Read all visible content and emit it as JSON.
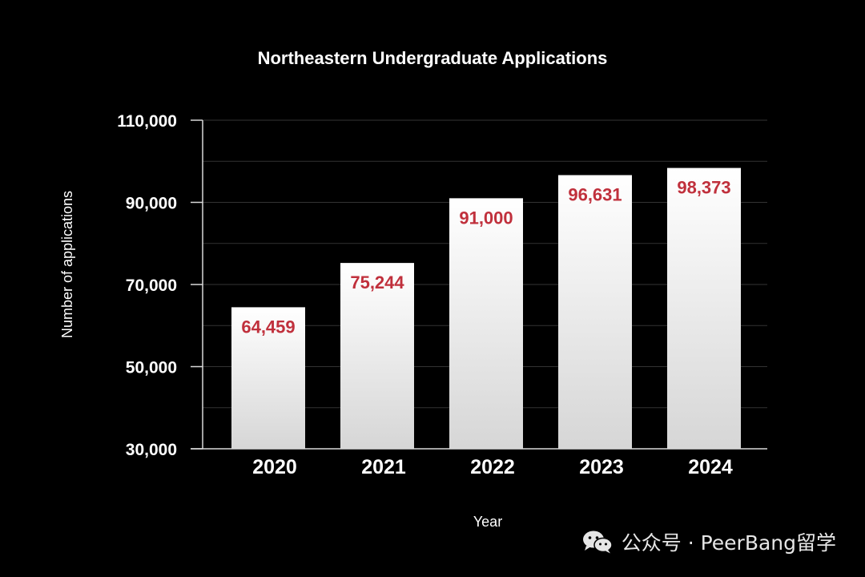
{
  "chart_data": {
    "type": "bar",
    "title": "Northeastern Undergraduate Applications",
    "xlabel": "Year",
    "ylabel": "Number of applications",
    "categories": [
      "2020",
      "2021",
      "2022",
      "2023",
      "2024"
    ],
    "values": [
      64459,
      75244,
      91000,
      96631,
      98373
    ],
    "value_labels": [
      "64,459",
      "75,244",
      "91,000",
      "96,631",
      "98,373"
    ],
    "ylim": [
      30000,
      110000
    ],
    "yticks": [
      30000,
      50000,
      70000,
      90000,
      110000
    ],
    "ytick_labels": [
      "30,000",
      "50,000",
      "70,000",
      "90,000",
      "110,000"
    ],
    "grid": true,
    "colors": {
      "background": "#000000",
      "bar_top": "#ffffff",
      "bar_bottom": "#d6d6d6",
      "value_label": "#c0303c",
      "text": "#ffffff"
    }
  },
  "watermark": {
    "icon": "wechat-icon",
    "text": "公众号 · PeerBang留学"
  }
}
